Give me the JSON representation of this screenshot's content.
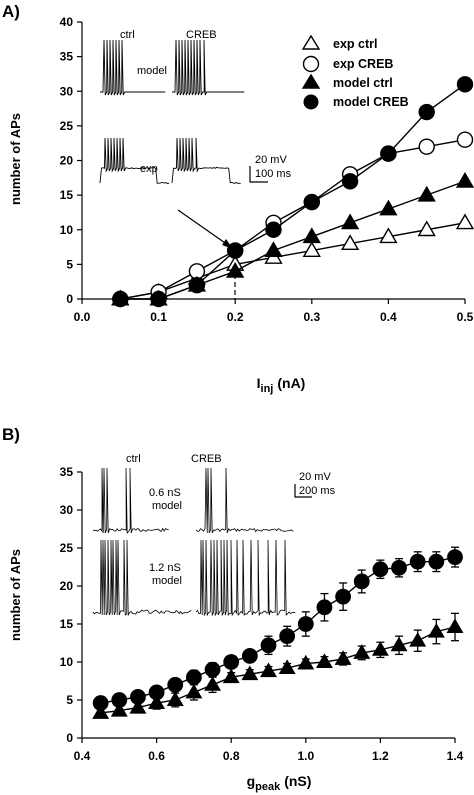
{
  "chart_data": [
    {
      "type": "line",
      "panel_label": "A)",
      "ylabel": "number of APs",
      "xlabel_main": "I",
      "xlabel_sub": "inj",
      "xlabel_unit": "(nA)",
      "xlim": [
        0,
        0.5
      ],
      "ylim": [
        0,
        40
      ],
      "x_ticks": [
        0.0,
        0.1,
        0.2,
        0.3,
        0.4,
        0.5
      ],
      "x_tick_labels": [
        "0.0",
        "0.1",
        "0.2",
        "0.3",
        "0.4",
        "0.5"
      ],
      "y_ticks": [
        0,
        5,
        10,
        15,
        20,
        25,
        30,
        35,
        40
      ],
      "legend_placement": "top-right",
      "series": [
        {
          "name": "exp ctrl",
          "marker": "triangle-open",
          "x": [
            0.05,
            0.1,
            0.15,
            0.2,
            0.25,
            0.3,
            0.35,
            0.4,
            0.45,
            0.5
          ],
          "values": [
            0,
            1,
            3,
            5,
            6,
            7,
            8,
            9,
            10,
            11
          ]
        },
        {
          "name": "exp CREB",
          "marker": "circle-open",
          "x": [
            0.05,
            0.1,
            0.15,
            0.2,
            0.25,
            0.3,
            0.35,
            0.4,
            0.45,
            0.5
          ],
          "values": [
            0,
            1,
            4,
            7,
            11,
            14,
            18,
            21,
            22,
            23
          ]
        },
        {
          "name": "model ctrl",
          "marker": "triangle-filled",
          "x": [
            0.05,
            0.1,
            0.15,
            0.2,
            0.25,
            0.3,
            0.35,
            0.4,
            0.45,
            0.5
          ],
          "values": [
            0,
            0,
            2,
            4,
            7,
            9,
            11,
            13,
            15,
            17
          ]
        },
        {
          "name": "model CREB",
          "marker": "circle-filled",
          "x": [
            0.05,
            0.1,
            0.15,
            0.2,
            0.25,
            0.3,
            0.35,
            0.4,
            0.45,
            0.5
          ],
          "values": [
            0,
            0,
            2,
            7,
            10,
            14,
            17,
            21,
            27,
            31
          ]
        }
      ],
      "inset": {
        "col_labels": [
          "ctrl",
          "CREB"
        ],
        "row_labels": [
          "model",
          "exp"
        ],
        "scale_v": "20 mV",
        "scale_t": "100 ms"
      }
    },
    {
      "type": "line",
      "panel_label": "B)",
      "ylabel": "number of APs",
      "xlabel_main": "g",
      "xlabel_sub": "peak",
      "xlabel_unit": "(nS)",
      "xlim": [
        0.4,
        1.4
      ],
      "ylim": [
        0,
        35
      ],
      "x_ticks": [
        0.4,
        0.6,
        0.8,
        1.0,
        1.2,
        1.4
      ],
      "x_tick_labels": [
        "0.4",
        "0.6",
        "0.8",
        "1.0",
        "1.2",
        "1.4"
      ],
      "y_ticks": [
        0,
        5,
        10,
        15,
        20,
        25,
        30,
        35
      ],
      "series": [
        {
          "marker": "circle-filled",
          "x": [
            0.45,
            0.5,
            0.55,
            0.6,
            0.65,
            0.7,
            0.75,
            0.8,
            0.85,
            0.9,
            0.95,
            1.0,
            1.05,
            1.1,
            1.15,
            1.2,
            1.25,
            1.3,
            1.35,
            1.4
          ],
          "values": [
            4.6,
            5.0,
            5.4,
            6.0,
            7.0,
            8.0,
            9.0,
            10.0,
            10.8,
            12.2,
            13.4,
            15.0,
            17.2,
            18.6,
            20.6,
            22.2,
            22.4,
            23.2,
            23.2,
            23.8
          ],
          "errors": [
            0.5,
            0.5,
            0.6,
            0.7,
            0.8,
            0.9,
            0.9,
            0.6,
            0.7,
            1.2,
            1.3,
            1.6,
            1.8,
            1.8,
            1.5,
            1.2,
            1.2,
            1.3,
            1.3,
            1.3
          ]
        },
        {
          "marker": "triangle-filled",
          "x": [
            0.45,
            0.5,
            0.55,
            0.6,
            0.65,
            0.7,
            0.75,
            0.8,
            0.85,
            0.9,
            0.95,
            1.0,
            1.05,
            1.1,
            1.15,
            1.2,
            1.25,
            1.3,
            1.35,
            1.4
          ],
          "values": [
            3.3,
            3.6,
            4.0,
            4.6,
            5.0,
            6.0,
            7.0,
            8.0,
            8.4,
            8.8,
            9.2,
            9.8,
            10.0,
            10.4,
            11.2,
            11.6,
            12.2,
            12.8,
            14.0,
            14.6
          ],
          "errors": [
            0.6,
            0.6,
            0.7,
            0.8,
            0.9,
            1.0,
            1.0,
            0.6,
            0.6,
            0.6,
            0.6,
            0.6,
            0.7,
            0.8,
            0.9,
            1.0,
            1.2,
            1.4,
            1.6,
            1.8
          ]
        }
      ],
      "inset": {
        "col_labels": [
          "ctrl",
          "CREB"
        ],
        "row_labels": [
          "0.6 nS",
          "model",
          "1.2 nS",
          "model"
        ],
        "scale_v": "20 mV",
        "scale_t": "200 ms"
      }
    }
  ]
}
